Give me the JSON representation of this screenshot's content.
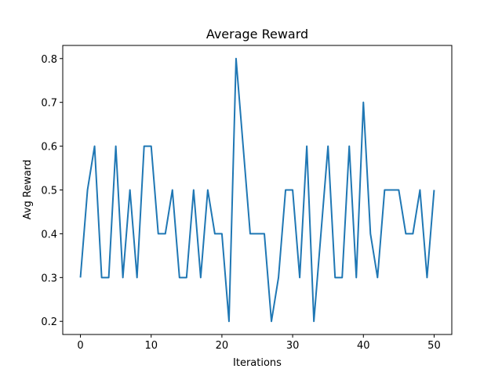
{
  "chart_data": {
    "type": "line",
    "title": "Average Reward",
    "xlabel": "Iterations",
    "ylabel": "Avg Reward",
    "xlim": [
      -2.5,
      52.5
    ],
    "ylim": [
      0.17,
      0.83
    ],
    "x_ticks": [
      0,
      10,
      20,
      30,
      40,
      50
    ],
    "y_ticks": [
      0.2,
      0.3,
      0.4,
      0.5,
      0.6,
      0.7,
      0.8
    ],
    "x_tick_labels": [
      "0",
      "10",
      "20",
      "30",
      "40",
      "50"
    ],
    "y_tick_labels": [
      "0.2",
      "0.3",
      "0.4",
      "0.5",
      "0.6",
      "0.7",
      "0.8"
    ],
    "grid": false,
    "series": [
      {
        "color": "#1f77b4",
        "x": [
          0,
          1,
          2,
          3,
          4,
          5,
          6,
          7,
          8,
          9,
          10,
          11,
          12,
          13,
          14,
          15,
          16,
          17,
          18,
          19,
          20,
          21,
          22,
          23,
          24,
          25,
          26,
          27,
          28,
          29,
          30,
          31,
          32,
          33,
          34,
          35,
          36,
          37,
          38,
          39,
          40,
          41,
          42,
          43,
          44,
          45,
          46,
          47,
          48,
          49,
          50
        ],
        "y": [
          0.3,
          0.5,
          0.6,
          0.3,
          0.3,
          0.6,
          0.3,
          0.5,
          0.3,
          0.6,
          0.6,
          0.4,
          0.4,
          0.5,
          0.3,
          0.3,
          0.5,
          0.3,
          0.5,
          0.4,
          0.4,
          0.2,
          0.8,
          0.6,
          0.4,
          0.4,
          0.4,
          0.2,
          0.3,
          0.5,
          0.5,
          0.3,
          0.6,
          0.2,
          0.4,
          0.6,
          0.3,
          0.3,
          0.6,
          0.3,
          0.7,
          0.4,
          0.3,
          0.5,
          0.5,
          0.5,
          0.4,
          0.4,
          0.5,
          0.3,
          0.5
        ]
      }
    ]
  }
}
